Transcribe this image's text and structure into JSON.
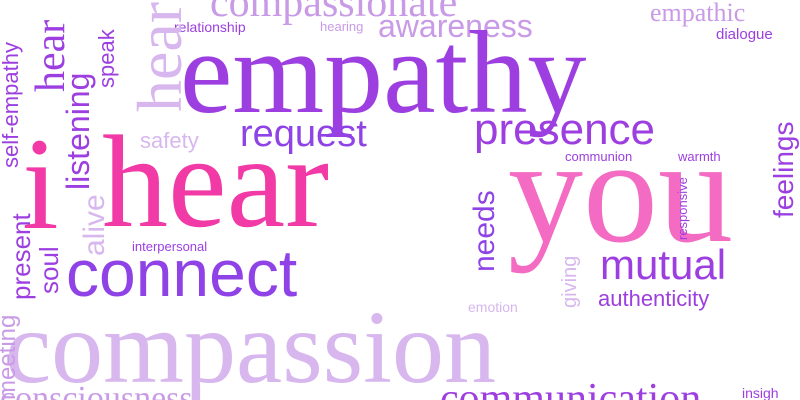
{
  "colors": {
    "purple": "#9d3fe0",
    "violet": "#8f43e6",
    "magenta": "#f13aa6",
    "pink": "#f46bc3",
    "lavender": "#c99be7",
    "light_lavender": "#d7b7ee",
    "plum": "#7e52b8"
  },
  "words": {
    "empathy": "empathy",
    "i": "i",
    "hear": "hear",
    "you": "you",
    "connect": "connect",
    "compassion": "compassion",
    "compassionate": "compassionate",
    "awareness": "awareness",
    "empathic": "empathic",
    "dialogue": "dialogue",
    "relationship": "relationship",
    "hearing": "hearing",
    "request": "request",
    "presence": "presence",
    "safety": "safety",
    "communion": "communion",
    "warmth": "warmth",
    "needs": "needs",
    "responsive": "responsive",
    "interpersonal": "interpersonal",
    "mutual": "mutual",
    "authenticity": "authenticity",
    "emotion": "emotion",
    "giving": "giving",
    "feelings": "feelings",
    "listening": "listening",
    "speak": "speak",
    "alive": "alive",
    "soul": "soul",
    "present": "present",
    "self_empathy": "self-empathy",
    "meeting": "meeting",
    "hear_vertical": "hear",
    "hear_vertical_2": "hear",
    "communication": "communication",
    "consciousness": "consciousness",
    "insight": "insigh"
  }
}
